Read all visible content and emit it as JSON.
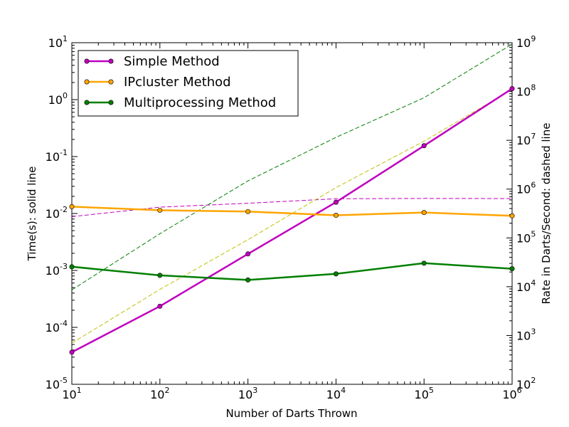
{
  "chart_data": {
    "type": "line",
    "x": [
      10,
      100,
      1000,
      10000,
      100000,
      1000000
    ],
    "x_scale": "log",
    "xlim": [
      10,
      1000000
    ],
    "xlabel": "Number of Darts Thrown",
    "ylabel_left": "Time(s): solid line",
    "ylabel_right": "Rate in Darts/Second: dashed line",
    "ylim_left": [
      1e-05,
      10
    ],
    "ylim_right": [
      100,
      1000000000
    ],
    "y_scale_left": "log",
    "y_scale_right": "log",
    "grid": false,
    "legend_position": "top-left",
    "x_ticks": [
      {
        "base": "10",
        "exp": "1"
      },
      {
        "base": "10",
        "exp": "2"
      },
      {
        "base": "10",
        "exp": "3"
      },
      {
        "base": "10",
        "exp": "4"
      },
      {
        "base": "10",
        "exp": "5"
      },
      {
        "base": "10",
        "exp": "6"
      }
    ],
    "y_ticks_left": [
      {
        "base": "10",
        "exp": "-5"
      },
      {
        "base": "10",
        "exp": "-4"
      },
      {
        "base": "10",
        "exp": "-3"
      },
      {
        "base": "10",
        "exp": "-2"
      },
      {
        "base": "10",
        "exp": "-1"
      },
      {
        "base": "10",
        "exp": "0"
      },
      {
        "base": "10",
        "exp": "1"
      }
    ],
    "y_ticks_right": [
      {
        "base": "10",
        "exp": "2"
      },
      {
        "base": "10",
        "exp": "3"
      },
      {
        "base": "10",
        "exp": "4"
      },
      {
        "base": "10",
        "exp": "5"
      },
      {
        "base": "10",
        "exp": "6"
      },
      {
        "base": "10",
        "exp": "7"
      },
      {
        "base": "10",
        "exp": "8"
      },
      {
        "base": "10",
        "exp": "9"
      }
    ],
    "series": [
      {
        "name": "Simple Method",
        "color": "#bf00bf",
        "time": [
          3.66e-05,
          0.000235,
          0.00195,
          0.0158,
          0.155,
          1.56
        ],
        "rate": [
          273000,
          426000,
          513000,
          633000,
          645000,
          641000
        ]
      },
      {
        "name": "IPcluster Method",
        "color": "#ffa500",
        "time": [
          0.0132,
          0.0114,
          0.0108,
          0.0093,
          0.0104,
          0.0091
        ],
        "rate": [
          700,
          8800,
          92000,
          1075000,
          9600000,
          110000000
        ]
      },
      {
        "name": "Multiprocessing Method",
        "color": "#007f00",
        "time": [
          0.00116,
          0.00082,
          0.00068,
          0.00087,
          0.00134,
          0.00107
        ],
        "rate": [
          8600,
          122000,
          1470000,
          11500000,
          74600000,
          935000000
        ]
      }
    ]
  }
}
